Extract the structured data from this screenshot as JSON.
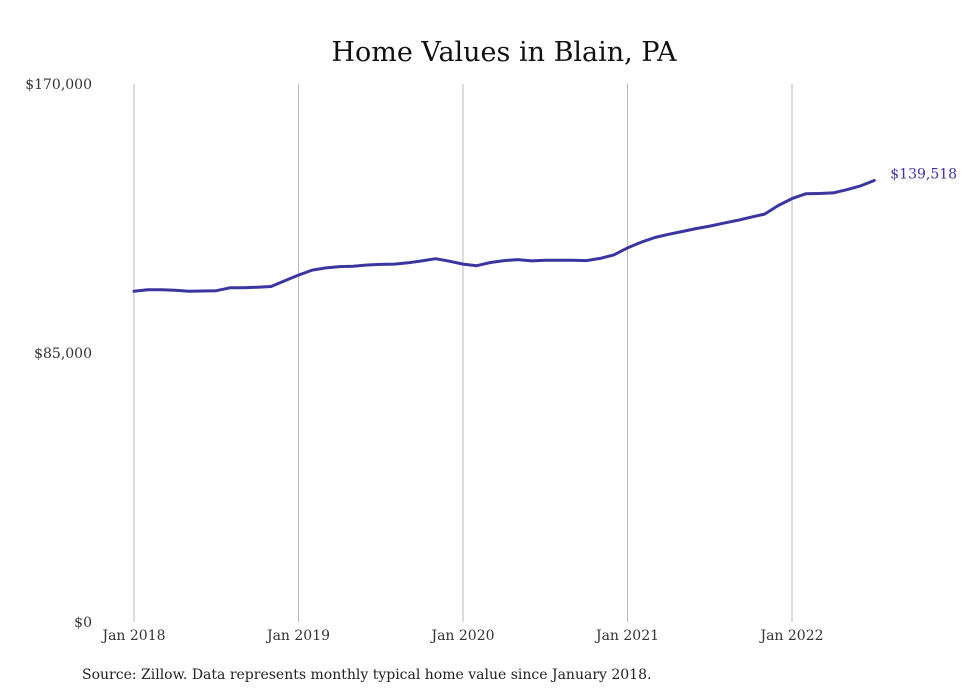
{
  "chart_data": {
    "type": "line",
    "title": "Home Values in Blain, PA",
    "xlabel": "",
    "ylabel": "",
    "ylim": [
      0,
      170000
    ],
    "y_ticks": [
      {
        "value": 0,
        "label": "$0"
      },
      {
        "value": 85000,
        "label": "$85,000"
      },
      {
        "value": 170000,
        "label": "$170,000"
      }
    ],
    "x_ticks": [
      {
        "date": "2018-01",
        "label": "Jan 2018"
      },
      {
        "date": "2019-01",
        "label": "Jan 2019"
      },
      {
        "date": "2020-01",
        "label": "Jan 2020"
      },
      {
        "date": "2021-01",
        "label": "Jan 2021"
      },
      {
        "date": "2022-01",
        "label": "Jan 2022"
      }
    ],
    "x_range": [
      "2018-01",
      "2022-07"
    ],
    "grid": "vertical",
    "line_color": "#3b35a0",
    "end_label": "$139,518",
    "series": [
      {
        "x": [
          "2018-01",
          "2018-02",
          "2018-03",
          "2018-04",
          "2018-05",
          "2018-06",
          "2018-07",
          "2018-08",
          "2018-09",
          "2018-10",
          "2018-11",
          "2018-12",
          "2019-01",
          "2019-02",
          "2019-03",
          "2019-04",
          "2019-05",
          "2019-06",
          "2019-07",
          "2019-08",
          "2019-09",
          "2019-10",
          "2019-11",
          "2019-12",
          "2020-01",
          "2020-02",
          "2020-03",
          "2020-04",
          "2020-05",
          "2020-06",
          "2020-07",
          "2020-08",
          "2020-09",
          "2020-10",
          "2020-11",
          "2020-12",
          "2021-01",
          "2021-02",
          "2021-03",
          "2021-04",
          "2021-05",
          "2021-06",
          "2021-07",
          "2021-08",
          "2021-09",
          "2021-10",
          "2021-11",
          "2021-12",
          "2022-01",
          "2022-02",
          "2022-03",
          "2022-04",
          "2022-05",
          "2022-06",
          "2022-07"
        ],
        "values": [
          104500,
          105000,
          105000,
          104800,
          104500,
          104600,
          104700,
          105600,
          105600,
          105800,
          106000,
          107800,
          109600,
          111200,
          111900,
          112300,
          112400,
          112800,
          113000,
          113100,
          113500,
          114100,
          114800,
          114000,
          113100,
          112600,
          113600,
          114200,
          114500,
          114100,
          114300,
          114300,
          114300,
          114200,
          114900,
          116000,
          118200,
          120000,
          121500,
          122500,
          123400,
          124300,
          125100,
          126000,
          126900,
          127900,
          128900,
          131600,
          133800,
          135300,
          135400,
          135600,
          136600,
          137800,
          139518
        ]
      }
    ]
  },
  "source": "Source: Zillow. Data represents monthly typical home value since January 2018."
}
